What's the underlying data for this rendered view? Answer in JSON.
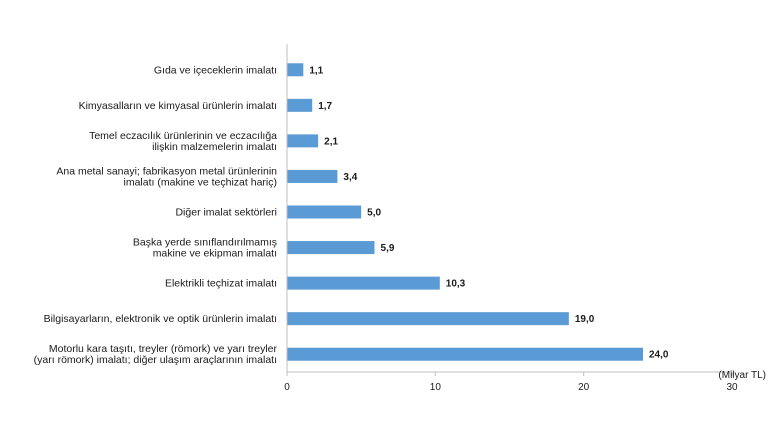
{
  "chart_data": {
    "type": "bar",
    "orientation": "horizontal",
    "categories": [
      [
        "Gıda ve içeceklerin imalatı"
      ],
      [
        "Kimyasalların ve kimyasal ürünlerin imalatı"
      ],
      [
        "Temel eczacılık ürünlerinin ve eczacılığa",
        "ilişkin malzemelerin imalatı"
      ],
      [
        "Ana metal sanayi; fabrikasyon metal ürünlerinin",
        "imalatı (makine ve teçhizat hariç)"
      ],
      [
        "Diğer imalat sektörleri"
      ],
      [
        "Başka yerde sınıflandırılmamış",
        "makine ve ekipman imalatı"
      ],
      [
        "Elektrikli teçhizat imalatı"
      ],
      [
        "Bilgisayarların, elektronik ve optik ürünlerin imalatı"
      ],
      [
        "Motorlu kara taşıtı, treyler (römork) ve yarı treyler",
        "(yarı römork) imalatı; diğer ulaşım araçlarının imalatı"
      ]
    ],
    "values": [
      1.1,
      1.7,
      2.1,
      3.4,
      5.0,
      5.9,
      10.3,
      19.0,
      24.0
    ],
    "value_labels": [
      "1,1",
      "1,7",
      "2,1",
      "3,4",
      "5,0",
      "5,9",
      "10,3",
      "19,0",
      "24,0"
    ],
    "xlim": [
      0,
      30
    ],
    "x_ticks": [
      0,
      10,
      20,
      30
    ],
    "x_unit_label": "(Milyar TL)",
    "bar_color": "#5B9BD5",
    "grid": false,
    "legend": "none"
  }
}
